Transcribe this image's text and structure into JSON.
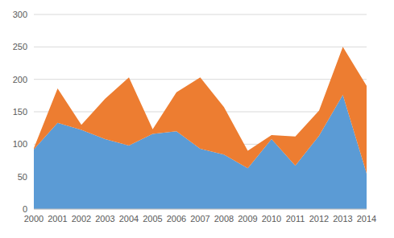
{
  "chart_data": {
    "type": "area",
    "stacked": true,
    "grid": true,
    "categories": [
      "2000",
      "2001",
      "2002",
      "2003",
      "2004",
      "2005",
      "2006",
      "2007",
      "2008",
      "2009",
      "2010",
      "2011",
      "2012",
      "2013",
      "2014"
    ],
    "series": [
      {
        "color": "#5b9bd5",
        "values": [
          92,
          133,
          122,
          108,
          98,
          116,
          120,
          93,
          84,
          63,
          108,
          67,
          113,
          176,
          55
        ]
      },
      {
        "color": "#ed7d31",
        "values": [
          2,
          53,
          8,
          62,
          105,
          7,
          60,
          110,
          73,
          27,
          6,
          45,
          39,
          74,
          135
        ]
      }
    ],
    "ylim": [
      0,
      300
    ],
    "yticks": [
      0,
      50,
      100,
      150,
      200,
      250,
      300
    ]
  }
}
